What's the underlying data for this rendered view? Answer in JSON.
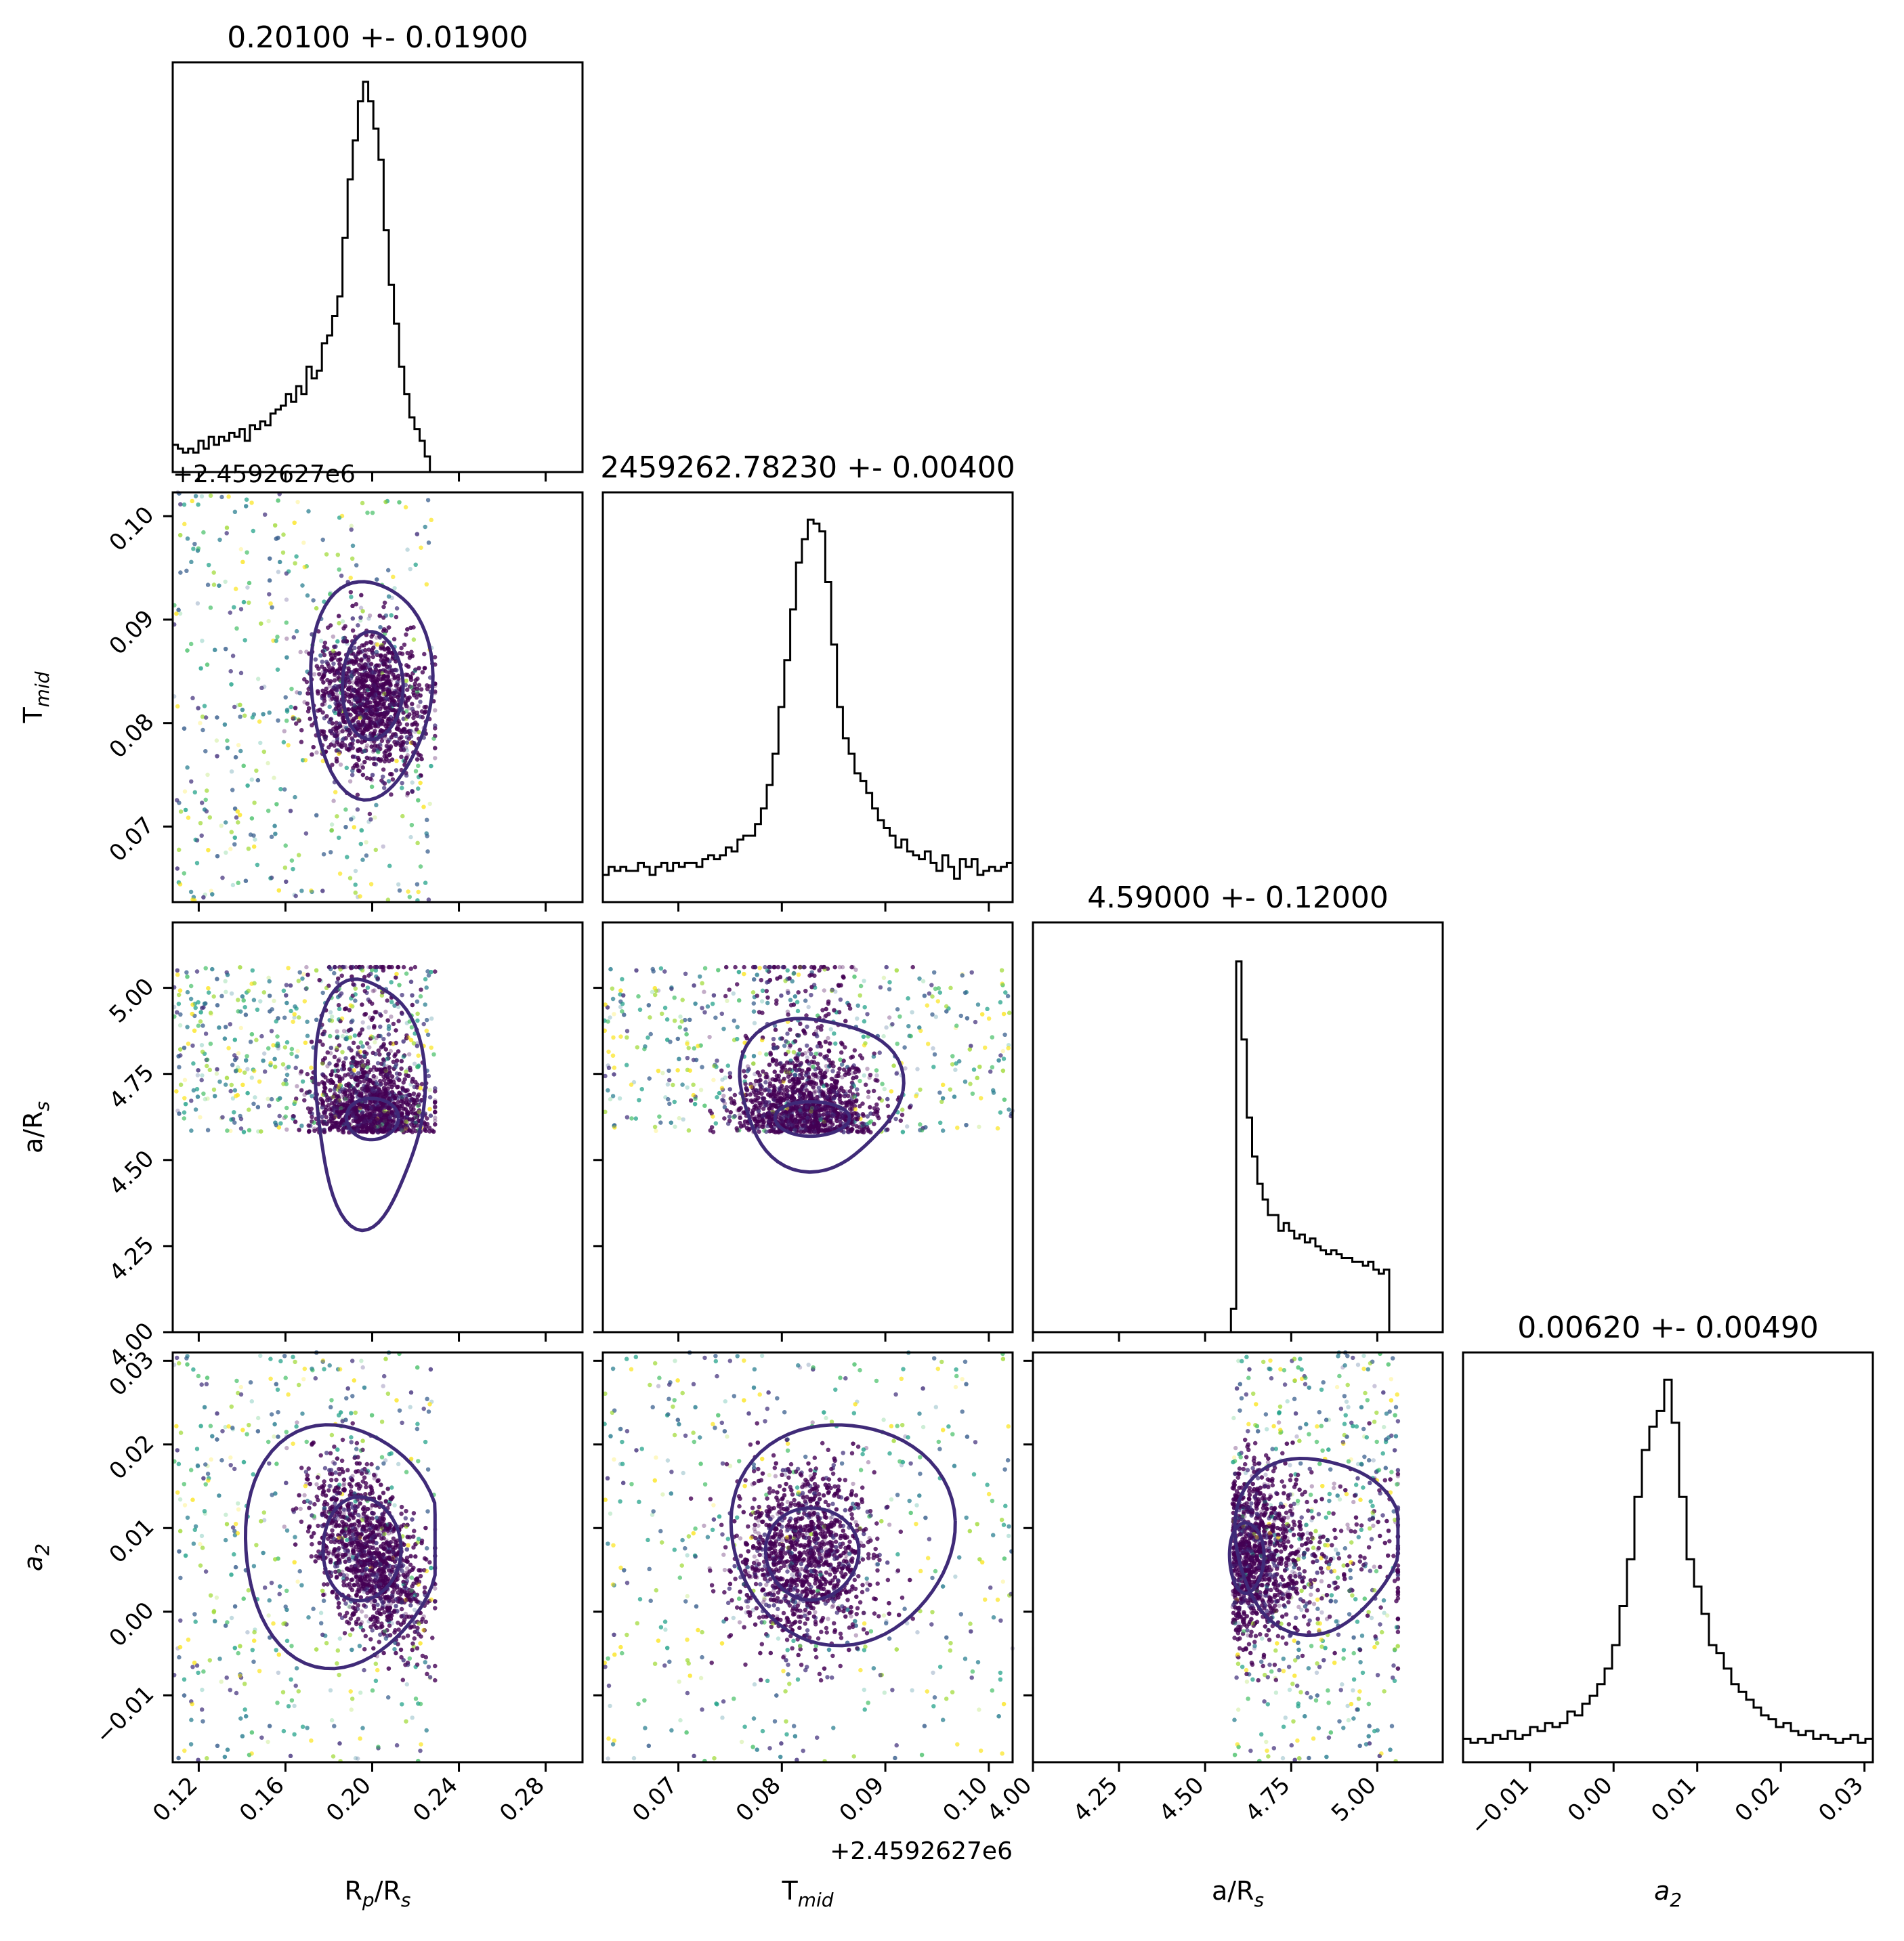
{
  "chart_data": {
    "type": "scatter",
    "title": "",
    "params": [
      {
        "key": "rp",
        "label": "R",
        "sub": "p",
        "suffix": "/R",
        "suffix_sub": "s",
        "title": "0.20100 +- 0.01900",
        "median": 0.201,
        "std": 0.019,
        "range": [
          0.108,
          0.297
        ],
        "ticks": [
          0.12,
          0.16,
          0.2,
          0.24,
          0.28
        ],
        "tick_labels": [
          "0.12",
          "0.16",
          "0.20",
          "0.24",
          "0.28"
        ],
        "offset": ""
      },
      {
        "key": "tmid",
        "label": "T",
        "sub": "mid",
        "suffix": "",
        "suffix_sub": "",
        "title": "2459262.78230 +- 0.00400",
        "median": 0.0823,
        "std": 0.004,
        "range": [
          0.0627,
          0.1023
        ],
        "ticks": [
          0.07,
          0.08,
          0.09,
          0.1
        ],
        "tick_labels": [
          "0.07",
          "0.08",
          "0.09",
          "0.10"
        ],
        "offset": "+2.4592627e6"
      },
      {
        "key": "ars",
        "label": "a/R",
        "sub": "",
        "suffix": "",
        "suffix_sub": "s",
        "title": "4.59000 +- 0.12000",
        "median": 4.59,
        "std": 0.12,
        "range": [
          4.0,
          5.19
        ],
        "ticks": [
          4.0,
          4.25,
          4.5,
          4.75,
          5.0
        ],
        "tick_labels": [
          "4.00",
          "4.25",
          "4.50",
          "4.75",
          "5.00"
        ],
        "offset": ""
      },
      {
        "key": "a2",
        "label": "a",
        "sub": "2",
        "suffix": "",
        "suffix_sub": "",
        "italic": true,
        "title": "0.00620 +- 0.00490",
        "median": 0.0062,
        "std": 0.0049,
        "range": [
          -0.018,
          0.031
        ],
        "ticks": [
          -0.01,
          0.0,
          0.01,
          0.02,
          0.03
        ],
        "tick_labels": [
          "−0.01",
          "0.00",
          "0.01",
          "0.02",
          "0.03"
        ],
        "offset": ""
      }
    ],
    "histograms": {
      "rp": {
        "bins": [
          0.108,
          0.229
        ],
        "counts": [
          0.07,
          0.06,
          0.05,
          0.06,
          0.05,
          0.08,
          0.06,
          0.09,
          0.07,
          0.09,
          0.08,
          0.1,
          0.09,
          0.11,
          0.08,
          0.12,
          0.11,
          0.13,
          0.12,
          0.15,
          0.16,
          0.17,
          0.2,
          0.18,
          0.22,
          0.2,
          0.27,
          0.24,
          0.26,
          0.33,
          0.35,
          0.4,
          0.45,
          0.6,
          0.75,
          0.85,
          0.95,
          1.0,
          0.95,
          0.88,
          0.8,
          0.62,
          0.48,
          0.38,
          0.27,
          0.2,
          0.14,
          0.11,
          0.08,
          0.04,
          0.0
        ],
        "range": [
          0,
          1.05
        ]
      },
      "tmid": {
        "bins": [
          0.0627,
          0.1023
        ],
        "counts": [
          0.07,
          0.09,
          0.08,
          0.09,
          0.08,
          0.08,
          0.1,
          0.09,
          0.07,
          0.09,
          0.1,
          0.08,
          0.1,
          0.09,
          0.1,
          0.1,
          0.09,
          0.11,
          0.12,
          0.11,
          0.12,
          0.14,
          0.13,
          0.16,
          0.17,
          0.17,
          0.2,
          0.24,
          0.3,
          0.38,
          0.5,
          0.62,
          0.75,
          0.87,
          0.93,
          0.98,
          0.97,
          0.95,
          0.82,
          0.66,
          0.5,
          0.42,
          0.38,
          0.33,
          0.31,
          0.28,
          0.24,
          0.21,
          0.19,
          0.17,
          0.14,
          0.16,
          0.13,
          0.12,
          0.11,
          0.13,
          0.1,
          0.08,
          0.12,
          0.09,
          0.06,
          0.11,
          0.09,
          0.11,
          0.07,
          0.08,
          0.09,
          0.08,
          0.09,
          0.1
        ],
        "range": [
          0,
          1.05
        ]
      },
      "ars": {
        "bins": [
          4.575,
          5.05
        ],
        "counts": [
          0.06,
          0.95,
          0.75,
          0.55,
          0.45,
          0.38,
          0.34,
          0.3,
          0.3,
          0.26,
          0.28,
          0.26,
          0.24,
          0.25,
          0.23,
          0.24,
          0.22,
          0.21,
          0.2,
          0.21,
          0.2,
          0.19,
          0.19,
          0.18,
          0.18,
          0.17,
          0.18,
          0.16,
          0.15,
          0.16,
          0.0
        ],
        "range": [
          0,
          1.05
        ]
      },
      "a2": {
        "bins": [
          -0.018,
          0.031
        ],
        "counts": [
          0.06,
          0.05,
          0.06,
          0.05,
          0.07,
          0.06,
          0.08,
          0.06,
          0.07,
          0.09,
          0.08,
          0.1,
          0.09,
          0.1,
          0.13,
          0.12,
          0.15,
          0.17,
          0.2,
          0.24,
          0.3,
          0.4,
          0.52,
          0.68,
          0.8,
          0.86,
          0.9,
          0.98,
          0.87,
          0.68,
          0.52,
          0.45,
          0.38,
          0.3,
          0.28,
          0.24,
          0.2,
          0.18,
          0.16,
          0.14,
          0.12,
          0.11,
          0.09,
          0.1,
          0.08,
          0.07,
          0.08,
          0.06,
          0.07,
          0.06,
          0.05,
          0.06,
          0.07,
          0.05,
          0.06
        ],
        "range": [
          0,
          1.05
        ]
      }
    },
    "scatter_support": {
      "rp": [
        0.108,
        0.229
      ],
      "tmid": [
        0.0627,
        0.1023
      ],
      "ars": [
        4.58,
        5.06
      ],
      "a2": [
        -0.018,
        0.031
      ]
    },
    "point_colors": [
      "#440154",
      "#46327e",
      "#365c8d",
      "#277f8e",
      "#1fa187",
      "#4ac16d",
      "#a0da39",
      "#fde725"
    ],
    "contour_color": "#3f2a78"
  }
}
